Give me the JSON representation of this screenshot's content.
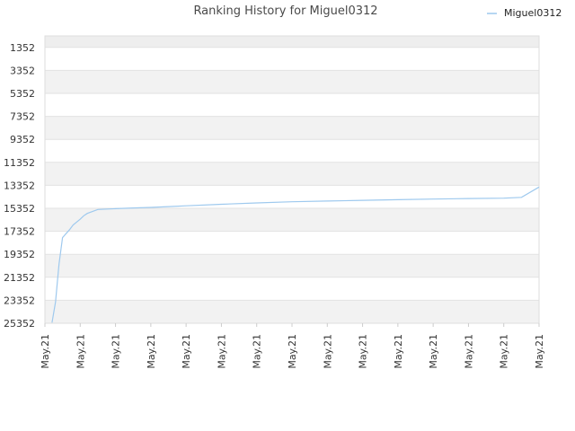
{
  "chart_data": {
    "type": "line",
    "title": "Ranking History for Miguel0312",
    "xlabel": "",
    "ylabel": "",
    "y_inverted": true,
    "ylim": [
      25352,
      352
    ],
    "y_ticks": [
      "1352",
      "3352",
      "5352",
      "7352",
      "9352",
      "11352",
      "13352",
      "15352",
      "17352",
      "19352",
      "21352",
      "23352",
      "25352"
    ],
    "x_ticks": [
      "May.21",
      "May.21",
      "May.21",
      "May.21",
      "May.21",
      "May.21",
      "May.21",
      "May.21",
      "May.21",
      "May.21",
      "May.21",
      "May.21",
      "May.21",
      "May.21",
      "May.21"
    ],
    "legend_position": "top-right",
    "grid": true,
    "band_colors": [
      "#eeeeee",
      "#ffffff",
      "#f2f2f2"
    ],
    "series": [
      {
        "name": "Miguel0312",
        "color": "#9ec9ee",
        "x": [
          0.2,
          0.3,
          0.35,
          0.4,
          0.5,
          0.7,
          0.8,
          1.0,
          1.1,
          1.2,
          1.5,
          2.0,
          2.5,
          3.0,
          3.5,
          4.0,
          5.0,
          6.0,
          7.0,
          8.0,
          9.0,
          10.0,
          11.0,
          12.0,
          13.0,
          13.5,
          14.0
        ],
        "y": [
          25300,
          23500,
          21800,
          20200,
          17900,
          17200,
          16800,
          16300,
          16000,
          15800,
          15450,
          15380,
          15320,
          15270,
          15200,
          15130,
          15000,
          14880,
          14780,
          14720,
          14660,
          14600,
          14550,
          14500,
          14470,
          14400,
          13500
        ]
      }
    ]
  }
}
